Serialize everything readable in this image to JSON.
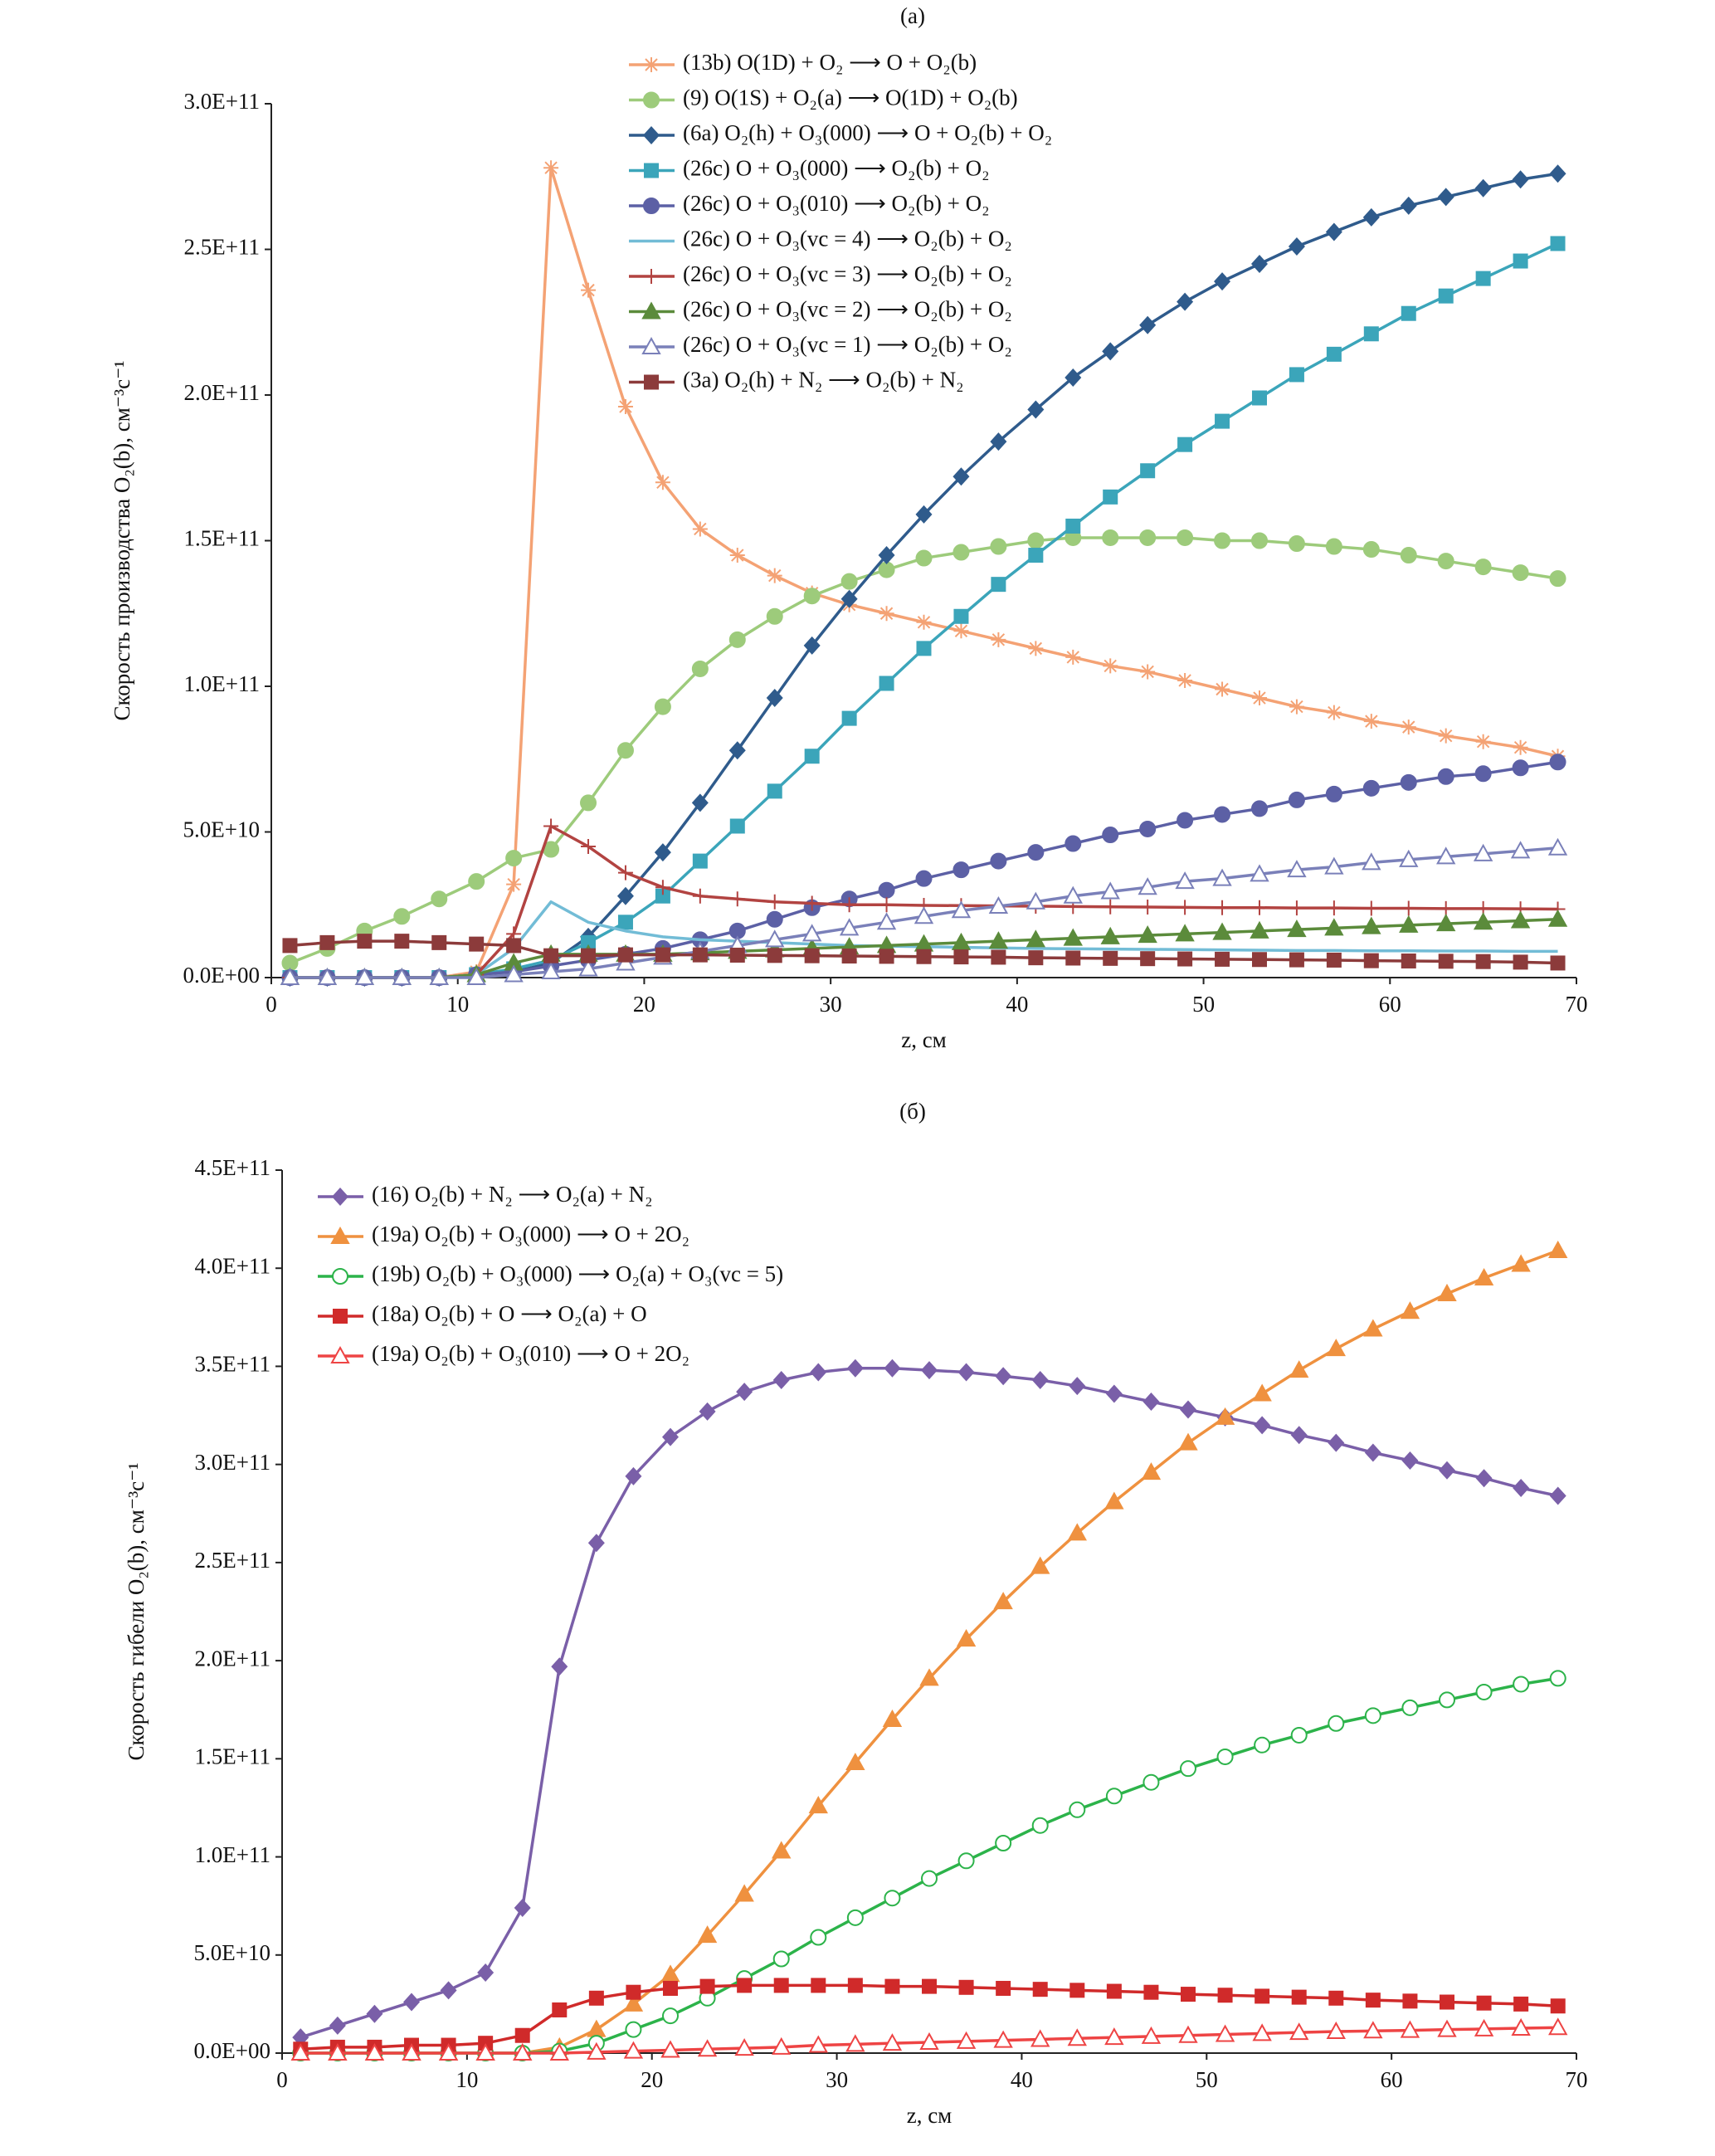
{
  "chart_data": [
    {
      "type": "line",
      "title": "(а)",
      "xlabel": "z, см",
      "ylabel": "Скорость производства O₂(b), см⁻³с⁻¹",
      "xlim": [
        0,
        70
      ],
      "xticks": [
        0,
        10,
        20,
        30,
        40,
        50,
        60,
        70
      ],
      "ylim": [
        0,
        300000000000.0
      ],
      "yticks": [
        {
          "value": 0,
          "label": "0.0E+00"
        },
        {
          "value": 50000000000.0,
          "label": "5.0E+10"
        },
        {
          "value": 100000000000.0,
          "label": "1.0E+11"
        },
        {
          "value": 150000000000.0,
          "label": "1.5E+11"
        },
        {
          "value": 200000000000.0,
          "label": "2.0E+11"
        },
        {
          "value": 250000000000.0,
          "label": "2.5E+11"
        },
        {
          "value": 300000000000.0,
          "label": "3.0E+11"
        }
      ],
      "grid": false,
      "x": [
        1,
        3,
        5,
        7,
        9,
        11,
        13,
        15,
        17,
        19,
        21,
        23,
        25,
        27,
        29,
        31,
        33,
        35,
        37,
        39,
        41,
        43,
        45,
        47,
        49,
        51,
        53,
        55,
        57,
        59,
        61,
        63,
        65,
        67,
        69
      ],
      "series": [
        {
          "name": "(13b) O(1D) + O₂ ⟶ O + O₂(b)",
          "color": "#f4a274",
          "marker": "asterisk",
          "values": [
            0,
            0,
            0,
            0,
            0,
            2000000000.0,
            32000000000.0,
            278000000000.0,
            236000000000.0,
            196000000000.0,
            170000000000.0,
            154000000000.0,
            145000000000.0,
            138000000000.0,
            132000000000.0,
            128000000000.0,
            125000000000.0,
            122000000000.0,
            119000000000.0,
            116000000000.0,
            113000000000.0,
            110000000000.0,
            107000000000.0,
            105000000000.0,
            102000000000.0,
            99000000000.0,
            96000000000.0,
            93000000000.0,
            91000000000.0,
            88000000000.0,
            86000000000.0,
            83000000000.0,
            81000000000.0,
            79000000000.0,
            76000000000.0
          ]
        },
        {
          "name": "(9) O(1S) + O₂(a) ⟶ O(1D) + O₂(b)",
          "color": "#9dcb7b",
          "marker": "circle",
          "values": [
            5000000000.0,
            10000000000.0,
            16000000000.0,
            21000000000.0,
            27000000000.0,
            33000000000.0,
            41000000000.0,
            44000000000.0,
            60000000000.0,
            78000000000.0,
            93000000000.0,
            106000000000.0,
            116000000000.0,
            124000000000.0,
            131000000000.0,
            136000000000.0,
            140000000000.0,
            144000000000.0,
            146000000000.0,
            148000000000.0,
            150000000000.0,
            151000000000.0,
            151000000000.0,
            151000000000.0,
            151000000000.0,
            150000000000.0,
            150000000000.0,
            149000000000.0,
            148000000000.0,
            147000000000.0,
            145000000000.0,
            143000000000.0,
            141000000000.0,
            139000000000.0,
            137000000000.0
          ]
        },
        {
          "name": "(6a) O₂(h) + O₃(000) ⟶ O + O₂(b) + O₂",
          "color": "#2f5b8c",
          "marker": "diamond",
          "values": [
            0,
            0,
            0,
            0,
            0,
            1000000000.0,
            2000000000.0,
            5000000000.0,
            14000000000.0,
            28000000000.0,
            43000000000.0,
            60000000000.0,
            78000000000.0,
            96000000000.0,
            114000000000.0,
            130000000000.0,
            145000000000.0,
            159000000000.0,
            172000000000.0,
            184000000000.0,
            195000000000.0,
            206000000000.0,
            215000000000.0,
            224000000000.0,
            232000000000.0,
            239000000000.0,
            245000000000.0,
            251000000000.0,
            256000000000.0,
            261000000000.0,
            265000000000.0,
            268000000000.0,
            271000000000.0,
            274000000000.0,
            276000000000.0
          ]
        },
        {
          "name": "(26c) O + O₃(000) ⟶ O₂(b) + O₂",
          "color": "#3ba5ba",
          "marker": "square",
          "values": [
            0,
            0,
            0,
            0,
            0,
            1000000000.0,
            3000000000.0,
            6000000000.0,
            12000000000.0,
            19000000000.0,
            28000000000.0,
            40000000000.0,
            52000000000.0,
            64000000000.0,
            76000000000.0,
            89000000000.0,
            101000000000.0,
            113000000000.0,
            124000000000.0,
            135000000000.0,
            145000000000.0,
            155000000000.0,
            165000000000.0,
            174000000000.0,
            183000000000.0,
            191000000000.0,
            199000000000.0,
            207000000000.0,
            214000000000.0,
            221000000000.0,
            228000000000.0,
            234000000000.0,
            240000000000.0,
            246000000000.0,
            252000000000.0
          ]
        },
        {
          "name": "(26c) O + O₃(010) ⟶ O₂(b) + O₂",
          "color": "#5c60a5",
          "marker": "circle",
          "values": [
            0,
            0,
            0,
            0,
            0,
            1000000000.0,
            2000000000.0,
            4000000000.0,
            6000000000.0,
            8000000000.0,
            10000000000.0,
            13000000000.0,
            16000000000.0,
            20000000000.0,
            24000000000.0,
            27000000000.0,
            30000000000.0,
            34000000000.0,
            37000000000.0,
            40000000000.0,
            43000000000.0,
            46000000000.0,
            49000000000.0,
            51000000000.0,
            54000000000.0,
            56000000000.0,
            58000000000.0,
            61000000000.0,
            63000000000.0,
            65000000000.0,
            67000000000.0,
            69000000000.0,
            70000000000.0,
            72000000000.0,
            74000000000.0
          ]
        },
        {
          "name": "(26c) O + O₃(vc = 4) ⟶ O₂(b) + O₂",
          "color": "#72bcd6",
          "marker": "none",
          "values": [
            0,
            0,
            0,
            0,
            0,
            1000000000.0,
            10000000000.0,
            26000000000.0,
            19000000000.0,
            16000000000.0,
            14000000000.0,
            13000000000.0,
            12500000000.0,
            12000000000.0,
            11500000000.0,
            11000000000.0,
            10800000000.0,
            10600000000.0,
            10400000000.0,
            10200000000.0,
            10000000000.0,
            9900000000.0,
            9800000000.0,
            9700000000.0,
            9600000000.0,
            9500000000.0,
            9400000000.0,
            9300000000.0,
            9300000000.0,
            9200000000.0,
            9200000000.0,
            9100000000.0,
            9100000000.0,
            9000000000.0,
            9000000000.0
          ]
        },
        {
          "name": "(26c) O + O₃(vc = 3) ⟶ O₂(b) + O₂",
          "color": "#b24341",
          "marker": "plus",
          "values": [
            0,
            0,
            0,
            0,
            0,
            1000000000.0,
            15000000000.0,
            52000000000.0,
            45000000000.0,
            36000000000.0,
            31000000000.0,
            28000000000.0,
            27000000000.0,
            26000000000.0,
            25500000000.0,
            25000000000.0,
            25000000000.0,
            24800000000.0,
            24700000000.0,
            24600000000.0,
            24500000000.0,
            24400000000.0,
            24300000000.0,
            24200000000.0,
            24100000000.0,
            24000000000.0,
            24000000000.0,
            23900000000.0,
            23900000000.0,
            23800000000.0,
            23800000000.0,
            23700000000.0,
            23700000000.0,
            23600000000.0,
            23500000000.0
          ]
        },
        {
          "name": "(26c) O + O₃(vc = 2) ⟶ O₂(b) + O₂",
          "color": "#5b8b3b",
          "marker": "triangle",
          "values": [
            0,
            0,
            0,
            0,
            0,
            1000000000.0,
            5000000000.0,
            8000000000.0,
            8000000000.0,
            8000000000.0,
            8000000000.0,
            8500000000.0,
            9000000000.0,
            9500000000.0,
            10000000000.0,
            10500000000.0,
            11000000000.0,
            11500000000.0,
            12000000000.0,
            12500000000.0,
            13000000000.0,
            13500000000.0,
            14000000000.0,
            14500000000.0,
            15000000000.0,
            15500000000.0,
            16000000000.0,
            16500000000.0,
            17000000000.0,
            17500000000.0,
            18000000000.0,
            18500000000.0,
            19000000000.0,
            19500000000.0,
            20000000000.0
          ]
        },
        {
          "name": "(26c) O + O₃(vc = 1) ⟶ O₂(b) + O₂",
          "color": "#7a80b9",
          "marker": "triangle-open",
          "values": [
            0,
            0,
            0,
            0,
            0,
            0,
            1000000000.0,
            2000000000.0,
            3000000000.0,
            5000000000.0,
            7000000000.0,
            9000000000.0,
            11000000000.0,
            13000000000.0,
            15000000000.0,
            17000000000.0,
            19000000000.0,
            21000000000.0,
            23000000000.0,
            24500000000.0,
            26000000000.0,
            28000000000.0,
            29500000000.0,
            31000000000.0,
            33000000000.0,
            34000000000.0,
            35500000000.0,
            37000000000.0,
            38000000000.0,
            39500000000.0,
            40500000000.0,
            41500000000.0,
            42500000000.0,
            43500000000.0,
            44500000000.0
          ]
        },
        {
          "name": "(3a) O₂(h) + N₂ ⟶ O₂(b) + N₂",
          "color": "#8c3b3b",
          "marker": "square",
          "values": [
            11000000000.0,
            12000000000.0,
            12500000000.0,
            12500000000.0,
            12000000000.0,
            11500000000.0,
            11000000000.0,
            7500000000.0,
            7500000000.0,
            7800000000.0,
            7800000000.0,
            7800000000.0,
            7700000000.0,
            7600000000.0,
            7500000000.0,
            7400000000.0,
            7300000000.0,
            7200000000.0,
            7100000000.0,
            7000000000.0,
            6800000000.0,
            6700000000.0,
            6600000000.0,
            6500000000.0,
            6400000000.0,
            6300000000.0,
            6200000000.0,
            6100000000.0,
            6000000000.0,
            5800000000.0,
            5700000000.0,
            5600000000.0,
            5500000000.0,
            5300000000.0,
            5000000000.0
          ]
        }
      ]
    },
    {
      "type": "line",
      "title": "(б)",
      "xlabel": "z, см",
      "ylabel": "Скорость гибели O₂(b), см⁻³с⁻¹",
      "xlim": [
        0,
        70
      ],
      "xticks": [
        0,
        10,
        20,
        30,
        40,
        50,
        60,
        70
      ],
      "ylim": [
        0,
        450000000000.0
      ],
      "yticks": [
        {
          "value": 0,
          "label": "0.0E+00"
        },
        {
          "value": 50000000000.0,
          "label": "5.0E+10"
        },
        {
          "value": 100000000000.0,
          "label": "1.0E+11"
        },
        {
          "value": 150000000000.0,
          "label": "1.5E+11"
        },
        {
          "value": 200000000000.0,
          "label": "2.0E+11"
        },
        {
          "value": 250000000000.0,
          "label": "2.5E+11"
        },
        {
          "value": 300000000000.0,
          "label": "3.0E+11"
        },
        {
          "value": 350000000000.0,
          "label": "3.5E+11"
        },
        {
          "value": 400000000000.0,
          "label": "4.0E+11"
        },
        {
          "value": 450000000000.0,
          "label": "4.5E+11"
        }
      ],
      "grid": false,
      "x": [
        1,
        3,
        5,
        7,
        9,
        11,
        13,
        15,
        17,
        19,
        21,
        23,
        25,
        27,
        29,
        31,
        33,
        35,
        37,
        39,
        41,
        43,
        45,
        47,
        49,
        51,
        53,
        55,
        57,
        59,
        61,
        63,
        65,
        67,
        69
      ],
      "series": [
        {
          "name": "(16) O₂(b) + N₂ ⟶ O₂(a) + N₂",
          "color": "#7a5fa8",
          "marker": "diamond",
          "values": [
            8000000000.0,
            14000000000.0,
            20000000000.0,
            26000000000.0,
            32000000000.0,
            41000000000.0,
            74000000000.0,
            197000000000.0,
            260000000000.0,
            294000000000.0,
            314000000000.0,
            327000000000.0,
            337000000000.0,
            343000000000.0,
            347000000000.0,
            349000000000.0,
            349000000000.0,
            348000000000.0,
            347000000000.0,
            345000000000.0,
            343000000000.0,
            340000000000.0,
            336000000000.0,
            332000000000.0,
            328000000000.0,
            324000000000.0,
            320000000000.0,
            315000000000.0,
            311000000000.0,
            306000000000.0,
            302000000000.0,
            297000000000.0,
            293000000000.0,
            288000000000.0,
            284000000000.0
          ]
        },
        {
          "name": "(19a) O₂(b) + O₃(000) ⟶ O + 2O₂",
          "color": "#ef913f",
          "marker": "triangle",
          "values": [
            0,
            0,
            0,
            0,
            0,
            0,
            0,
            3000000000.0,
            12000000000.0,
            25000000000.0,
            40000000000.0,
            60000000000.0,
            81000000000.0,
            103000000000.0,
            126000000000.0,
            148000000000.0,
            170000000000.0,
            191000000000.0,
            211000000000.0,
            230000000000.0,
            248000000000.0,
            265000000000.0,
            281000000000.0,
            296000000000.0,
            311000000000.0,
            324000000000.0,
            336000000000.0,
            348000000000.0,
            359000000000.0,
            369000000000.0,
            378000000000.0,
            387000000000.0,
            395000000000.0,
            402000000000.0,
            409000000000.0
          ]
        },
        {
          "name": "(19b) O₂(b) + O₃(000) ⟶ O₂(a) + O₃(vc = 5)",
          "color": "#2cb34a",
          "marker": "circle-open",
          "values": [
            0,
            0,
            0,
            0,
            0,
            0,
            0,
            1000000000.0,
            5000000000.0,
            12000000000.0,
            19000000000.0,
            28000000000.0,
            38000000000.0,
            48000000000.0,
            59000000000.0,
            69000000000.0,
            79000000000.0,
            89000000000.0,
            98000000000.0,
            107000000000.0,
            116000000000.0,
            124000000000.0,
            131000000000.0,
            138000000000.0,
            145000000000.0,
            151000000000.0,
            157000000000.0,
            162000000000.0,
            168000000000.0,
            172000000000.0,
            176000000000.0,
            180000000000.0,
            184000000000.0,
            188000000000.0,
            191000000000.0
          ]
        },
        {
          "name": "(18a) O₂(b) + O ⟶ O₂(a) + O",
          "color": "#d02a2a",
          "marker": "square",
          "values": [
            2000000000.0,
            3000000000.0,
            3000000000.0,
            4000000000.0,
            4000000000.0,
            5000000000.0,
            9000000000.0,
            22000000000.0,
            28000000000.0,
            31000000000.0,
            33000000000.0,
            34000000000.0,
            34500000000.0,
            34500000000.0,
            34500000000.0,
            34500000000.0,
            34000000000.0,
            34000000000.0,
            33500000000.0,
            33000000000.0,
            32500000000.0,
            32000000000.0,
            31500000000.0,
            31000000000.0,
            30000000000.0,
            29500000000.0,
            29000000000.0,
            28500000000.0,
            28000000000.0,
            27000000000.0,
            26500000000.0,
            26000000000.0,
            25500000000.0,
            25000000000.0,
            24000000000.0
          ]
        },
        {
          "name": "(19a) O₂(b) + O₃(010) ⟶ O + 2O₂",
          "color": "#ee4444",
          "marker": "triangle-open",
          "values": [
            0,
            0,
            0,
            0,
            0,
            0,
            0,
            0,
            500000000.0,
            1000000000.0,
            1500000000.0,
            2000000000.0,
            2500000000.0,
            3000000000.0,
            4000000000.0,
            4500000000.0,
            5000000000.0,
            5500000000.0,
            6000000000.0,
            6500000000.0,
            7000000000.0,
            7500000000.0,
            8000000000.0,
            8500000000.0,
            9000000000.0,
            9500000000.0,
            10000000000.0,
            10500000000.0,
            11000000000.0,
            11300000000.0,
            11600000000.0,
            12000000000.0,
            12300000000.0,
            12700000000.0,
            13000000000.0
          ]
        }
      ]
    }
  ]
}
